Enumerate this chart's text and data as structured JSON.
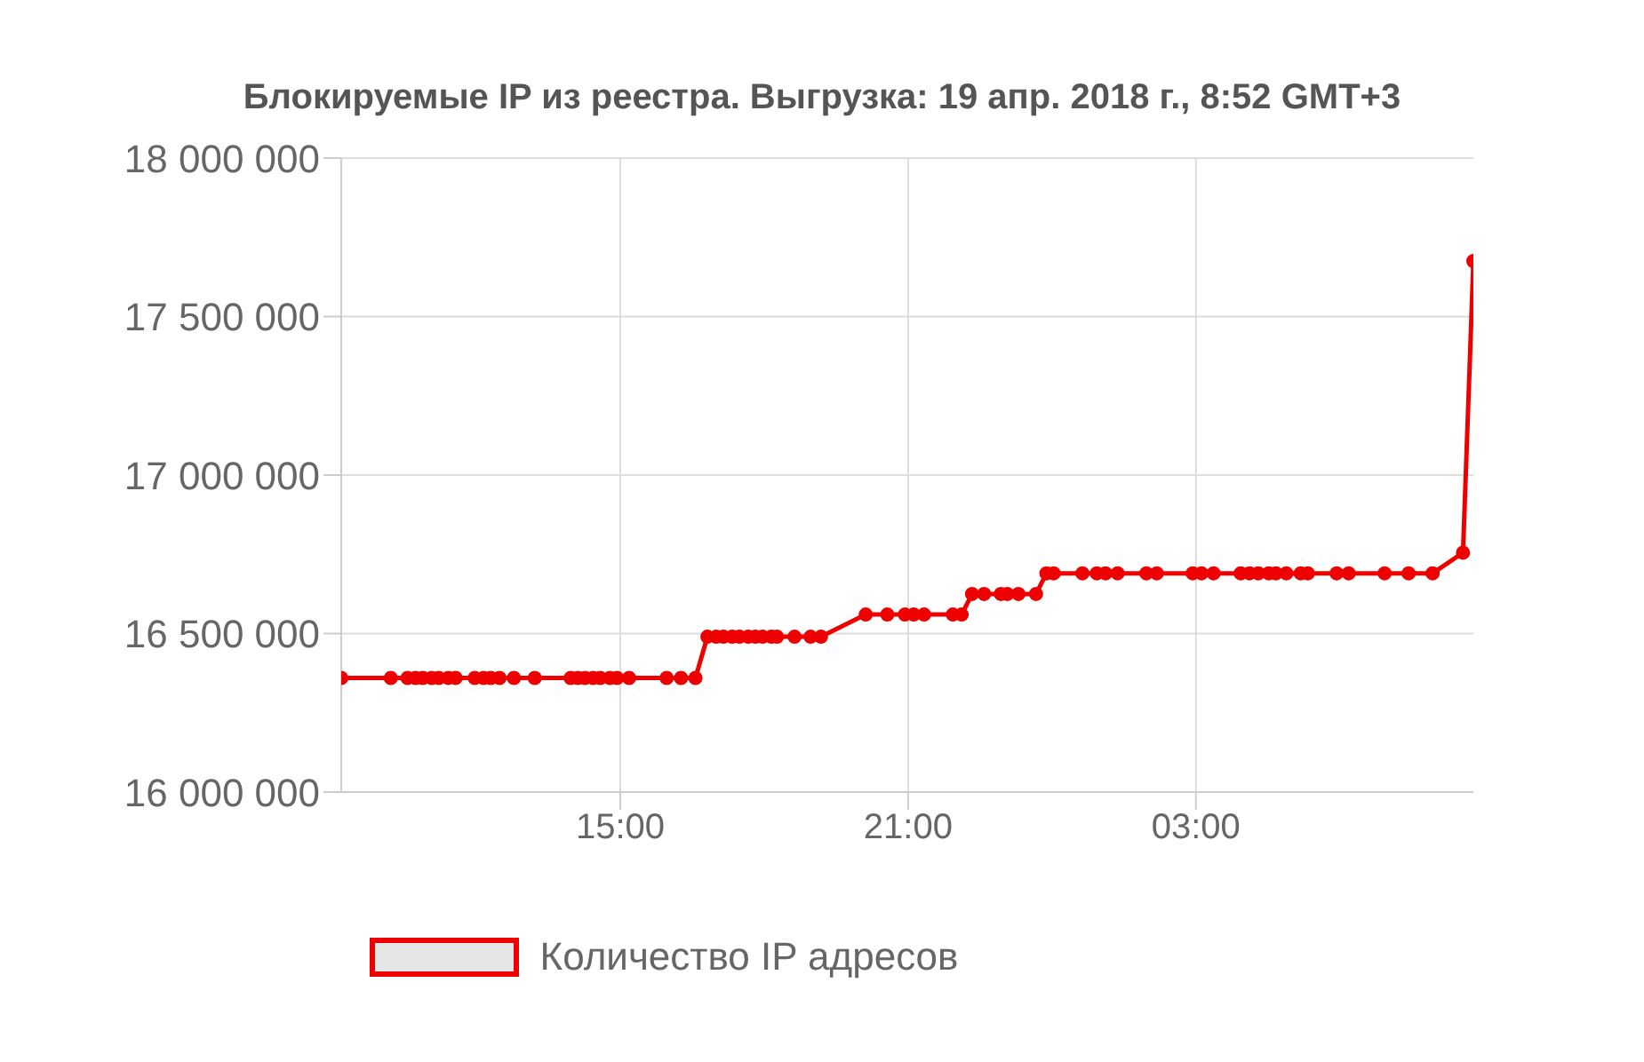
{
  "chart_data": {
    "type": "line",
    "title": "Блокируемые IP из реестра. Выгрузка: 19 апр. 2018 г., 8:52 GMT+3",
    "x": [
      "2018-04-18T09:11",
      "2018-04-18T10:13",
      "2018-04-18T10:34",
      "2018-04-18T10:44",
      "2018-04-18T10:53",
      "2018-04-18T11:04",
      "2018-04-18T11:13",
      "2018-04-18T11:25",
      "2018-04-18T11:34",
      "2018-04-18T11:58",
      "2018-04-18T12:09",
      "2018-04-18T12:18",
      "2018-04-18T12:29",
      "2018-04-18T12:47",
      "2018-04-18T13:13",
      "2018-04-18T13:58",
      "2018-04-18T14:07",
      "2018-04-18T14:16",
      "2018-04-18T14:26",
      "2018-04-18T14:35",
      "2018-04-18T14:47",
      "2018-04-18T14:56",
      "2018-04-18T15:11",
      "2018-04-18T15:58",
      "2018-04-18T16:16",
      "2018-04-18T16:34",
      "2018-04-18T16:49",
      "2018-04-18T17:00",
      "2018-04-18T17:09",
      "2018-04-18T17:20",
      "2018-04-18T17:29",
      "2018-04-18T17:40",
      "2018-04-18T17:49",
      "2018-04-18T17:58",
      "2018-04-18T18:09",
      "2018-04-18T18:16",
      "2018-04-18T18:38",
      "2018-04-18T18:58",
      "2018-04-18T19:11",
      "2018-04-18T20:07",
      "2018-04-18T20:34",
      "2018-04-18T20:56",
      "2018-04-18T21:07",
      "2018-04-18T21:20",
      "2018-04-18T21:56",
      "2018-04-18T22:07",
      "2018-04-18T22:20",
      "2018-04-18T22:35",
      "2018-04-18T22:56",
      "2018-04-18T23:04",
      "2018-04-18T23:18",
      "2018-04-18T23:40",
      "2018-04-18T23:53",
      "2018-04-19T00:02",
      "2018-04-19T00:38",
      "2018-04-19T00:56",
      "2018-04-19T01:07",
      "2018-04-19T01:22",
      "2018-04-19T01:58",
      "2018-04-19T02:11",
      "2018-04-19T02:56",
      "2018-04-19T03:07",
      "2018-04-19T03:22",
      "2018-04-19T03:56",
      "2018-04-19T04:07",
      "2018-04-19T04:18",
      "2018-04-19T04:31",
      "2018-04-19T04:40",
      "2018-04-19T04:53",
      "2018-04-19T05:11",
      "2018-04-19T05:20",
      "2018-04-19T05:56",
      "2018-04-19T06:11",
      "2018-04-19T06:56",
      "2018-04-19T07:26",
      "2018-04-19T07:56",
      "2018-04-19T08:34",
      "2018-04-19T08:47"
    ],
    "series": [
      {
        "name": "Количество IP адресов",
        "color": "#ee0000",
        "values": [
          16360000,
          16360000,
          16360000,
          16360000,
          16360000,
          16360000,
          16360000,
          16360000,
          16360000,
          16360000,
          16360000,
          16360000,
          16360000,
          16360000,
          16360000,
          16360000,
          16360000,
          16360000,
          16360000,
          16360000,
          16360000,
          16360000,
          16360000,
          16360000,
          16360000,
          16360000,
          16490000,
          16490000,
          16490000,
          16490000,
          16490000,
          16490000,
          16490000,
          16490000,
          16490000,
          16490000,
          16490000,
          16490000,
          16490000,
          16560000,
          16560000,
          16560000,
          16560000,
          16560000,
          16560000,
          16560000,
          16625000,
          16625000,
          16625000,
          16625000,
          16625000,
          16625000,
          16690000,
          16690000,
          16690000,
          16690000,
          16690000,
          16690000,
          16690000,
          16690000,
          16690000,
          16690000,
          16690000,
          16690000,
          16690000,
          16690000,
          16690000,
          16690000,
          16690000,
          16690000,
          16690000,
          16690000,
          16690000,
          16690000,
          16690000,
          16690000,
          16755000,
          17675000
        ]
      }
    ],
    "xlim": [
      "2018-04-18T09:11",
      "2018-04-19T08:47"
    ],
    "xticks": [
      {
        "value": "2018-04-18T15:00",
        "label": "15:00"
      },
      {
        "value": "2018-04-18T21:00",
        "label": "21:00"
      },
      {
        "value": "2018-04-19T03:00",
        "label": "03:00"
      }
    ],
    "ylim": [
      16000000,
      18000000
    ],
    "yticks": [
      {
        "value": 16000000,
        "label": "16 000 000"
      },
      {
        "value": 16500000,
        "label": "16 500 000"
      },
      {
        "value": 17000000,
        "label": "17 000 000"
      },
      {
        "value": 17500000,
        "label": "17 500 000"
      },
      {
        "value": 18000000,
        "label": "18 000 000"
      }
    ],
    "grid": true,
    "legend": "bottom",
    "marker": "circle",
    "line_style": "solid"
  }
}
